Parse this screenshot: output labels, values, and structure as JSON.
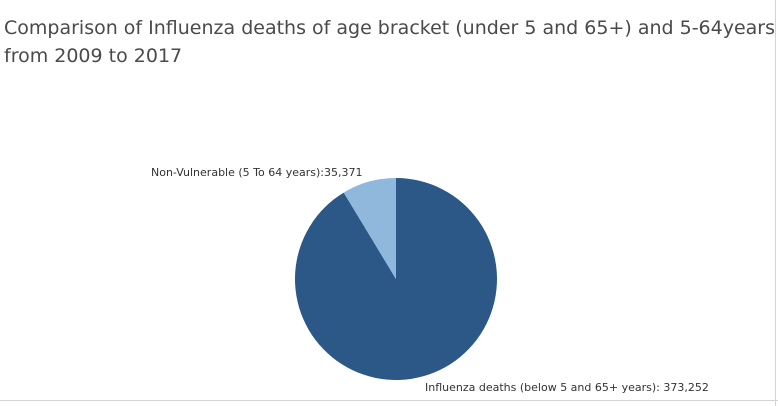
{
  "chart_data": {
    "type": "pie",
    "title": "Comparison of Influenza deaths of age bracket (under 5 and 65+) and 5-64years old\nfrom 2009 to 2017",
    "slices": [
      {
        "label": "Influenza deaths (below 5 and 65+ years): 373,252",
        "value": 373252,
        "color": "#2b5886"
      },
      {
        "label": "Non-Vulnerable (5 To 64 years):35,371",
        "value": 35371,
        "color": "#8fb8dc"
      }
    ]
  }
}
